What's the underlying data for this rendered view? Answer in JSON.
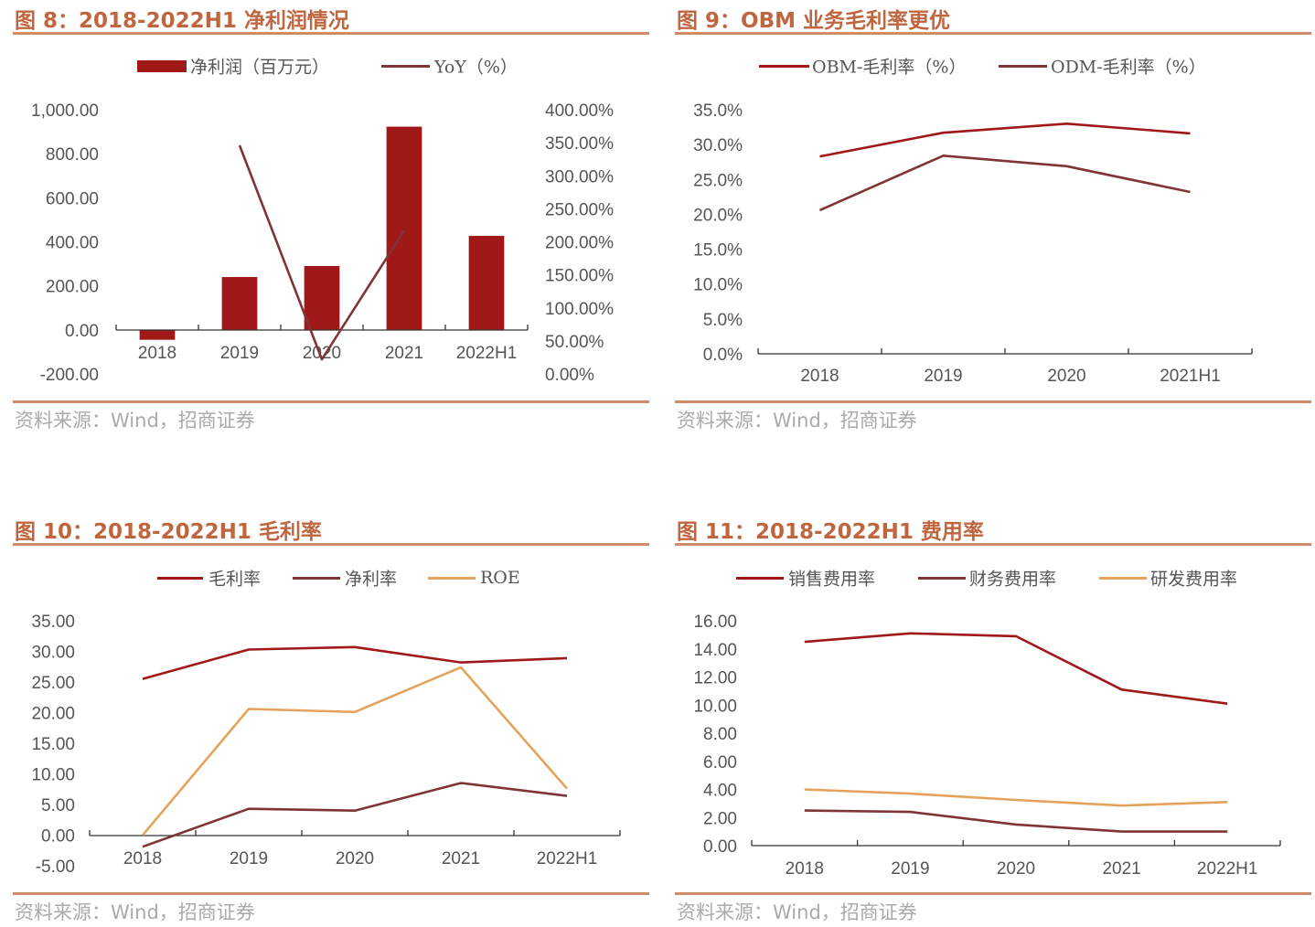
{
  "source": "资料来源：Wind，招商证券",
  "colors": {
    "title": "#c0663f",
    "rule": "#cf8a66",
    "dark_red": "#a01818",
    "brown_red": "#7f3535",
    "orange": "#e4a35c"
  },
  "chart_data": [
    {
      "title": "图 8：2018-2022H1 净利润情况",
      "type": "bar+line",
      "categories": [
        "2018",
        "2019",
        "2020",
        "2021",
        "2022H1"
      ],
      "series": [
        {
          "name": "净利润（百万元）",
          "type": "bar",
          "axis": "left",
          "color": "#a01818",
          "values": [
            -45,
            240,
            290,
            923,
            427
          ]
        },
        {
          "name": "YoY（%）",
          "type": "line",
          "axis": "right",
          "color": "#7f3535",
          "values": [
            null,
            346,
            22,
            217,
            null
          ]
        }
      ],
      "ylim": [
        -200,
        1000
      ],
      "yticks": [
        "-200.00",
        "0.00",
        "200.00",
        "400.00",
        "600.00",
        "800.00",
        "1,000.00"
      ],
      "y2lim": [
        0,
        400
      ],
      "y2ticks": [
        "0.00%",
        "50.00%",
        "100.00%",
        "150.00%",
        "200.00%",
        "250.00%",
        "300.00%",
        "350.00%",
        "400.00%"
      ],
      "legend": "top",
      "grid": false
    },
    {
      "title": "图 9：OBM 业务毛利率更优",
      "type": "line",
      "categories": [
        "2018",
        "2019",
        "2020",
        "2021H1"
      ],
      "series": [
        {
          "name": "OBM-毛利率（%）",
          "color": "#a01818",
          "values": [
            28.3,
            31.7,
            33.0,
            31.6
          ]
        },
        {
          "name": "ODM-毛利率（%）",
          "color": "#7f3535",
          "values": [
            20.6,
            28.4,
            26.9,
            23.2
          ]
        }
      ],
      "ylim": [
        0,
        35
      ],
      "yticks": [
        "0.0%",
        "5.0%",
        "10.0%",
        "15.0%",
        "20.0%",
        "25.0%",
        "30.0%",
        "35.0%"
      ],
      "legend": "top",
      "grid": false
    },
    {
      "title": "图 10：2018-2022H1 毛利率",
      "type": "line",
      "categories": [
        "2018",
        "2019",
        "2020",
        "2021",
        "2022H1"
      ],
      "series": [
        {
          "name": "毛利率",
          "color": "#a01818",
          "values": [
            25.5,
            30.3,
            30.7,
            28.2,
            28.9
          ]
        },
        {
          "name": "净利率",
          "color": "#7f3535",
          "values": [
            -1.9,
            4.3,
            4.0,
            8.5,
            6.4
          ]
        },
        {
          "name": "ROE",
          "color": "#e4a35c",
          "values": [
            0.0,
            20.6,
            20.1,
            27.4,
            7.6
          ]
        }
      ],
      "ylim": [
        -5,
        35
      ],
      "yticks": [
        "-5.00",
        "0.00",
        "5.00",
        "10.00",
        "15.00",
        "20.00",
        "25.00",
        "30.00",
        "35.00"
      ],
      "legend": "top",
      "grid": false
    },
    {
      "title": "图 11：2018-2022H1 费用率",
      "type": "line",
      "categories": [
        "2018",
        "2019",
        "2020",
        "2021",
        "2022H1"
      ],
      "series": [
        {
          "name": "销售费用率",
          "color": "#a01818",
          "values": [
            14.5,
            15.1,
            14.9,
            11.1,
            10.1
          ]
        },
        {
          "name": "财务费用率",
          "color": "#7f3535",
          "values": [
            2.5,
            2.4,
            1.5,
            1.0,
            1.0
          ]
        },
        {
          "name": "研发费用率",
          "color": "#e4a35c",
          "values": [
            4.0,
            3.7,
            3.25,
            2.85,
            3.1
          ]
        }
      ],
      "ylim": [
        0,
        16
      ],
      "yticks": [
        "0.00",
        "2.00",
        "4.00",
        "6.00",
        "8.00",
        "10.00",
        "12.00",
        "14.00",
        "16.00"
      ],
      "legend": "top",
      "grid": false
    }
  ]
}
